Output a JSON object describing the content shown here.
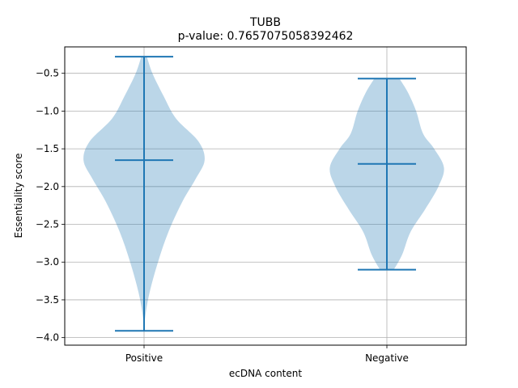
{
  "chart_data": {
    "type": "violin",
    "title": "TUBB",
    "subtitle": "p-value: 0.7657075058392462",
    "xlabel": "ecDNA content",
    "ylabel": "Essentiality score",
    "categories": [
      "Positive",
      "Negative"
    ],
    "ylim": [
      -4.1,
      -0.15
    ],
    "yticks": [
      -4.0,
      -3.5,
      -3.0,
      -2.5,
      -2.0,
      -1.5,
      -1.0,
      -0.5
    ],
    "ytick_labels": [
      "−4.0",
      "−3.5",
      "−3.0",
      "−2.5",
      "−2.0",
      "−1.5",
      "−1.0",
      "−0.5"
    ],
    "grid": true,
    "colors": {
      "fill": "#1f77b4",
      "line": "#1f77b4",
      "grid": "#b0b0b0"
    },
    "violins": [
      {
        "category": "Positive",
        "min": -3.91,
        "max": -0.28,
        "median": -1.65,
        "profile": [
          [
            -3.91,
            0.0
          ],
          [
            -3.7,
            0.02
          ],
          [
            -3.4,
            0.08
          ],
          [
            -3.0,
            0.2
          ],
          [
            -2.6,
            0.35
          ],
          [
            -2.2,
            0.55
          ],
          [
            -1.9,
            0.74
          ],
          [
            -1.65,
            0.87
          ],
          [
            -1.4,
            0.78
          ],
          [
            -1.1,
            0.46
          ],
          [
            -0.8,
            0.28
          ],
          [
            -0.5,
            0.12
          ],
          [
            -0.28,
            0.04
          ]
        ]
      },
      {
        "category": "Negative",
        "min": -3.1,
        "max": -0.57,
        "median": -1.7,
        "profile": [
          [
            -3.1,
            0.1
          ],
          [
            -2.9,
            0.22
          ],
          [
            -2.6,
            0.34
          ],
          [
            -2.3,
            0.55
          ],
          [
            -2.0,
            0.74
          ],
          [
            -1.75,
            0.82
          ],
          [
            -1.5,
            0.68
          ],
          [
            -1.3,
            0.52
          ],
          [
            -1.0,
            0.42
          ],
          [
            -0.75,
            0.3
          ],
          [
            -0.57,
            0.18
          ]
        ]
      }
    ]
  }
}
